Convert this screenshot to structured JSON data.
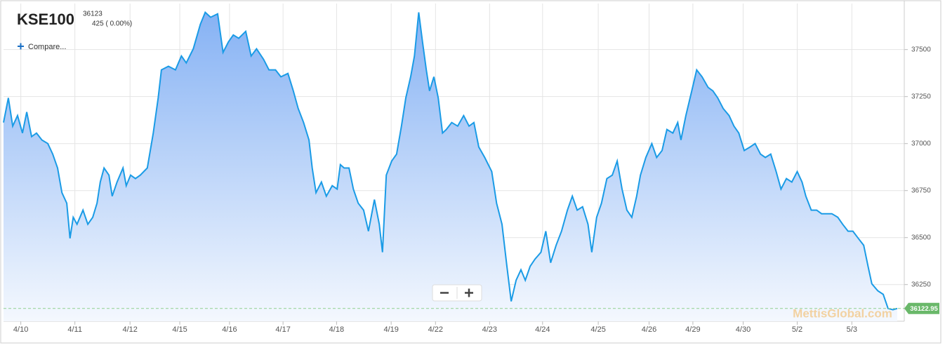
{
  "chart_data": {
    "type": "area",
    "title": "KSE100",
    "quote": {
      "price": 36123,
      "change": "425 ( 0.00%)"
    },
    "compare_button": "Compare...",
    "watermark": "MettisGlobal.com",
    "color": "#1a9be6",
    "grid": true,
    "xlim": [
      0,
      16.66
    ],
    "xticks": [
      {
        "value": 0.32,
        "label": "4/10"
      },
      {
        "value": 1.32,
        "label": "4/11"
      },
      {
        "value": 2.34,
        "label": "4/12"
      },
      {
        "value": 3.26,
        "label": "4/15"
      },
      {
        "value": 4.18,
        "label": "4/16"
      },
      {
        "value": 5.17,
        "label": "4/17"
      },
      {
        "value": 6.16,
        "label": "4/18"
      },
      {
        "value": 7.17,
        "label": "4/19"
      },
      {
        "value": 7.99,
        "label": "4/22"
      },
      {
        "value": 8.99,
        "label": "4/23"
      },
      {
        "value": 9.97,
        "label": "4/24"
      },
      {
        "value": 11.0,
        "label": "4/25"
      },
      {
        "value": 11.94,
        "label": "4/26"
      },
      {
        "value": 12.75,
        "label": "4/29"
      },
      {
        "value": 13.68,
        "label": "4/30"
      },
      {
        "value": 14.68,
        "label": "5/2"
      },
      {
        "value": 15.69,
        "label": "5/3"
      }
    ],
    "ylim": [
      36055,
      37745
    ],
    "yticks": [
      36250,
      36500,
      36750,
      37000,
      37250,
      37500
    ],
    "x": [
      0,
      0.09,
      0.17,
      0.26,
      0.35,
      0.43,
      0.52,
      0.61,
      0.71,
      0.82,
      0.91,
      1.0,
      1.08,
      1.17,
      1.23,
      1.29,
      1.36,
      1.47,
      1.56,
      1.65,
      1.73,
      1.79,
      1.86,
      1.95,
      2.01,
      2.1,
      2.21,
      2.27,
      2.35,
      2.44,
      2.53,
      2.66,
      2.77,
      2.86,
      2.92,
      3.05,
      3.18,
      3.29,
      3.38,
      3.51,
      3.64,
      3.73,
      3.83,
      3.96,
      4.06,
      4.16,
      4.25,
      4.35,
      4.48,
      4.58,
      4.68,
      4.81,
      4.91,
      5.03,
      5.13,
      5.26,
      5.36,
      5.45,
      5.55,
      5.65,
      5.71,
      5.78,
      5.88,
      5.97,
      6.08,
      6.17,
      6.23,
      6.3,
      6.39,
      6.47,
      6.56,
      6.66,
      6.75,
      6.86,
      6.95,
      7.01,
      7.08,
      7.18,
      7.27,
      7.36,
      7.44,
      7.53,
      7.6,
      7.68,
      7.75,
      7.82,
      7.88,
      7.96,
      8.04,
      8.12,
      8.19,
      8.29,
      8.4,
      8.51,
      8.61,
      8.7,
      8.79,
      8.9,
      9.03,
      9.12,
      9.22,
      9.31,
      9.39,
      9.48,
      9.57,
      9.65,
      9.74,
      9.83,
      9.94,
      10.03,
      10.12,
      10.22,
      10.32,
      10.43,
      10.52,
      10.61,
      10.71,
      10.81,
      10.88,
      10.97,
      11.06,
      11.16,
      11.26,
      11.35,
      11.44,
      11.53,
      11.62,
      11.71,
      11.78,
      11.88,
      11.99,
      12.08,
      12.18,
      12.27,
      12.38,
      12.47,
      12.53,
      12.62,
      12.73,
      12.82,
      12.92,
      13.03,
      13.12,
      13.21,
      13.31,
      13.42,
      13.51,
      13.6,
      13.7,
      13.81,
      13.9,
      14.0,
      14.09,
      14.19,
      14.29,
      14.38,
      14.48,
      14.58,
      14.68,
      14.77,
      14.84,
      14.94,
      15.04,
      15.13,
      15.23,
      15.32,
      15.43,
      15.52,
      15.62,
      15.71,
      15.81,
      15.91,
      15.99,
      16.06,
      16.17,
      16.27,
      16.36,
      16.45,
      16.53
    ],
    "values": [
      37112,
      37243,
      37093,
      37149,
      37056,
      37168,
      37037,
      37056,
      37019,
      37000,
      36944,
      36870,
      36739,
      36683,
      36496,
      36608,
      36571,
      36646,
      36571,
      36608,
      36683,
      36795,
      36870,
      36832,
      36720,
      36795,
      36870,
      36776,
      36832,
      36814,
      36832,
      36870,
      37056,
      37243,
      37392,
      37411,
      37392,
      37466,
      37429,
      37504,
      37634,
      37698,
      37672,
      37690,
      37485,
      37541,
      37578,
      37560,
      37597,
      37466,
      37504,
      37448,
      37392,
      37392,
      37355,
      37373,
      37280,
      37187,
      37112,
      37019,
      36870,
      36739,
      36795,
      36720,
      36776,
      36758,
      36888,
      36870,
      36870,
      36758,
      36683,
      36646,
      36534,
      36702,
      36571,
      36422,
      36832,
      36907,
      36944,
      37093,
      37243,
      37355,
      37466,
      37698,
      37541,
      37392,
      37280,
      37355,
      37243,
      37056,
      37075,
      37112,
      37093,
      37149,
      37093,
      37112,
      36982,
      36926,
      36851,
      36683,
      36571,
      36347,
      36161,
      36273,
      36329,
      36273,
      36347,
      36385,
      36422,
      36534,
      36366,
      36459,
      36534,
      36646,
      36720,
      36646,
      36664,
      36571,
      36422,
      36608,
      36683,
      36814,
      36832,
      36907,
      36758,
      36646,
      36608,
      36720,
      36832,
      36926,
      37000,
      36926,
      36963,
      37075,
      37056,
      37112,
      37019,
      37149,
      37280,
      37392,
      37355,
      37299,
      37280,
      37243,
      37187,
      37149,
      37093,
      37056,
      36963,
      36982,
      37000,
      36944,
      36926,
      36944,
      36851,
      36758,
      36814,
      36795,
      36851,
      36795,
      36720,
      36646,
      36646,
      36627,
      36627,
      36627,
      36608,
      36571,
      36534,
      36534,
      36496,
      36459,
      36347,
      36254,
      36217,
      36198,
      36123,
      36116,
      36122.95
    ]
  }
}
